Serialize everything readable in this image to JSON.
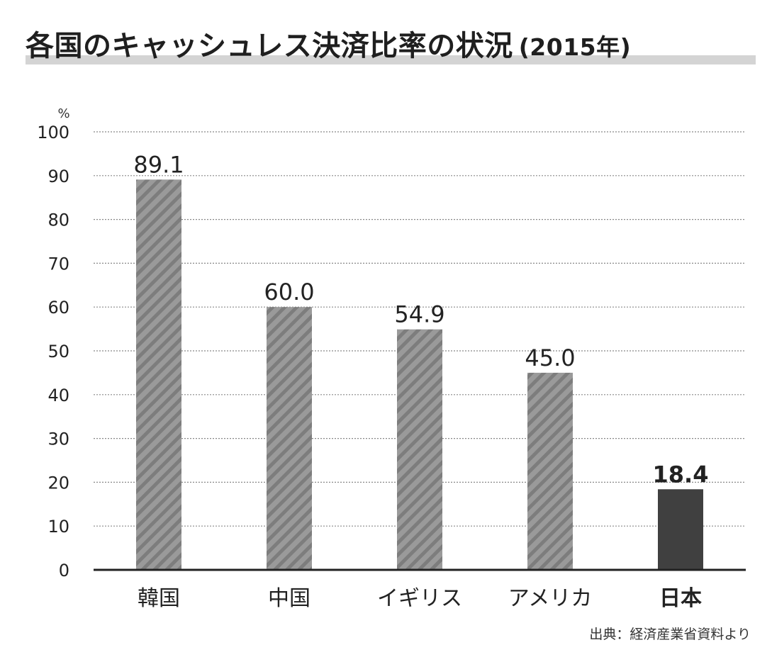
{
  "title": {
    "main": "各国のキャッシュレス決済比率の状況",
    "year": "(2015年)"
  },
  "source": "出典：経済産業省資料より",
  "colors": {
    "bar": "#9a9a9a",
    "bar_stripe": "#7d7d7d",
    "highlight": "#404040",
    "grid": "#888888",
    "axis": "#222222"
  },
  "chart_data": {
    "type": "bar",
    "unit": "%",
    "categories": [
      "韓国",
      "中国",
      "イギリス",
      "アメリカ",
      "日本"
    ],
    "values": [
      89.1,
      60.0,
      54.9,
      45.0,
      18.4
    ],
    "value_labels": [
      "89.1",
      "60.0",
      "54.9",
      "45.0",
      "18.4"
    ],
    "highlight_category": "日本",
    "ylim": [
      0,
      100
    ],
    "yticks": [
      0,
      10,
      20,
      30,
      40,
      50,
      60,
      70,
      80,
      90,
      100
    ],
    "grid": true
  }
}
